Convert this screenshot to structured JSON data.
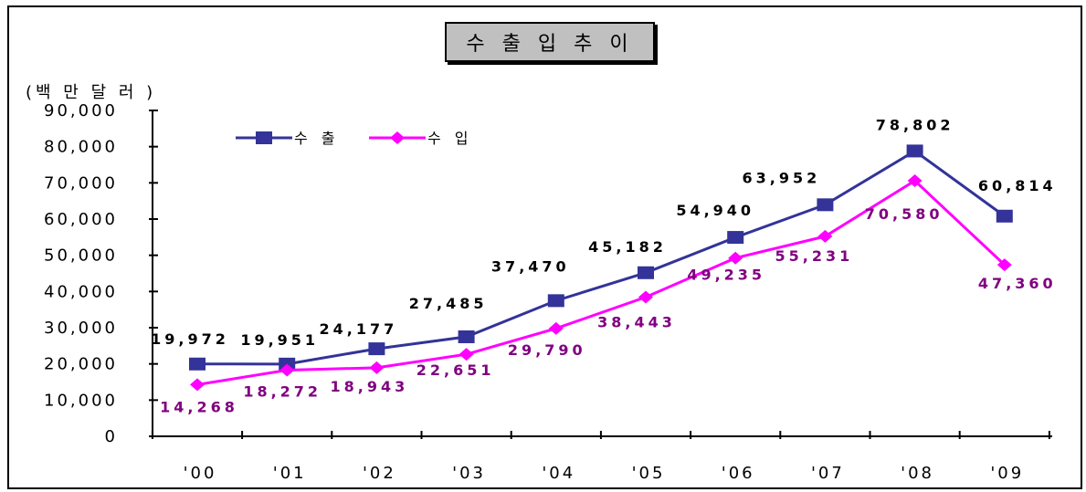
{
  "chart_data": {
    "type": "line",
    "title": "수 출 입  추 이",
    "unit_label": "(백 만 달 러 )",
    "categories": [
      "'00",
      "'01",
      "'02",
      "'03",
      "'04",
      "'05",
      "'06",
      "'07",
      "'08",
      "'09"
    ],
    "ylim": [
      0,
      90000
    ],
    "y_ticks": [
      "0",
      "10,000",
      "20,000",
      "30,000",
      "40,000",
      "50,000",
      "60,000",
      "70,000",
      "80,000",
      "90,000"
    ],
    "grid": false,
    "legend_position": "top-left",
    "series": [
      {
        "name": "수 출",
        "color": "#333399",
        "marker": "square",
        "values": [
          19972,
          19951,
          24177,
          27485,
          37470,
          45182,
          54940,
          63952,
          78802,
          60814
        ],
        "labels": [
          "19,972",
          "19,951",
          "24,177",
          "27,485",
          "37,470",
          "45,182",
          "54,940",
          "63,952",
          "78,802",
          "60,814"
        ],
        "label_color": "#000000"
      },
      {
        "name": "수 입",
        "color": "#ff00ff",
        "marker": "diamond",
        "values": [
          14268,
          18272,
          18943,
          22651,
          29790,
          38443,
          49235,
          55231,
          70580,
          47360
        ],
        "labels": [
          "14,268",
          "18,272",
          "18,943",
          "22,651",
          "29,790",
          "38,443",
          "49,235",
          "55,231",
          "70,580",
          "47,360"
        ],
        "label_color": "#800080"
      }
    ]
  }
}
